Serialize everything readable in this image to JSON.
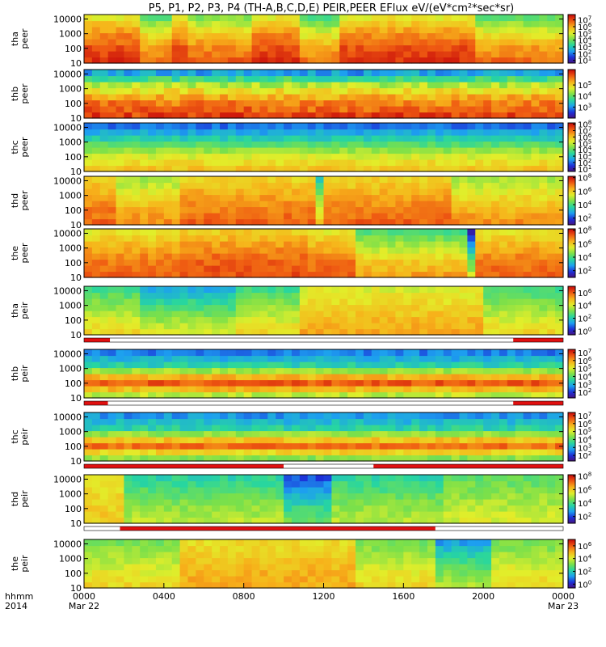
{
  "title": "P5, P1, P2, P3, P4 (TH-A,B,C,D,E) PEIR,PEER EFlux eV/(eV*cm²*sec*sr)",
  "colors": {
    "colormap": [
      "#4b0f7a",
      "#1c2fd8",
      "#1d9ff0",
      "#27d6a0",
      "#7be04a",
      "#e2ee2a",
      "#f7b21a",
      "#ef5a12",
      "#c80a0a"
    ],
    "flag_red": "#e01010",
    "flag_white": "#ffffff",
    "dropout": "#000000"
  },
  "chart_data": {
    "type": "heatmap",
    "title": "P5, P1, P2, P3, P4 (TH-A,B,C,D,E) PEIR,PEER EFlux eV/(eV*cm²*sec*sr)",
    "x_axis": {
      "label_line1": "hhmm",
      "label_line2": "2014",
      "range_hours": [
        0,
        24
      ],
      "ticks": [
        {
          "hour": 0,
          "label": "0000",
          "date": "Mar 22"
        },
        {
          "hour": 4,
          "label": "0400",
          "date": ""
        },
        {
          "hour": 8,
          "label": "0800",
          "date": ""
        },
        {
          "hour": 12,
          "label": "1200",
          "date": ""
        },
        {
          "hour": 16,
          "label": "1600",
          "date": ""
        },
        {
          "hour": 20,
          "label": "2000",
          "date": ""
        },
        {
          "hour": 24,
          "label": "0000",
          "date": "Mar 23"
        }
      ]
    },
    "y_scale": "log",
    "y_range": [
      10,
      20000
    ],
    "y_ticks": [
      {
        "value": 10,
        "label": "10"
      },
      {
        "value": 100,
        "label": "100"
      },
      {
        "value": 1000,
        "label": "1000"
      },
      {
        "value": 10000,
        "label": "10000"
      }
    ],
    "panels": [
      {
        "probe": "tha",
        "species": "peer",
        "colorbar_exponents": [
          1,
          2,
          3,
          4,
          5,
          6,
          7
        ],
        "cb_range": [
          0.6,
          7.8
        ],
        "base": [
          7.4,
          7.0,
          6.2,
          5.0
        ],
        "events": [
          [
            2.7,
            4.2,
            -1.4
          ],
          [
            5.2,
            8.2,
            -1.0
          ],
          [
            10.9,
            12.6,
            -1.6
          ],
          [
            19.8,
            24,
            -1.4
          ]
        ]
      },
      {
        "probe": "thb",
        "species": "peer",
        "colorbar_exponents": [
          3,
          4,
          5
        ],
        "cb_range": [
          2.0,
          6.4
        ],
        "base": [
          6.1,
          5.6,
          4.6,
          2.8
        ],
        "events": []
      },
      {
        "probe": "thc",
        "species": "peer",
        "colorbar_exponents": [
          1,
          2,
          3,
          4,
          5,
          6,
          7,
          8
        ],
        "cb_range": [
          0.6,
          8.2
        ],
        "base": [
          6.2,
          5.2,
          3.4,
          1.8
        ],
        "events": []
      },
      {
        "probe": "thd",
        "species": "peer",
        "colorbar_exponents": [
          2,
          4,
          6,
          8
        ],
        "cb_range": [
          1.0,
          8.2
        ],
        "base": [
          7.3,
          6.9,
          6.4,
          5.8
        ],
        "events": [
          [
            1.6,
            4.8,
            -1.0
          ],
          [
            11.6,
            12.1,
            -2.4
          ],
          [
            18.4,
            24,
            -1.0
          ]
        ]
      },
      {
        "probe": "the",
        "species": "peer",
        "colorbar_exponents": [
          2,
          4,
          6,
          8
        ],
        "cb_range": [
          1.0,
          8.2
        ],
        "base": [
          7.3,
          7.0,
          6.3,
          5.5
        ],
        "events": [
          [
            4.8,
            11.0,
            0.4
          ],
          [
            13.6,
            19.6,
            -1.6
          ],
          [
            19.2,
            19.5,
            -3.0
          ]
        ]
      },
      {
        "probe": "tha",
        "species": "peir",
        "colorbar_exponents": [
          0,
          2,
          4,
          6
        ],
        "cb_range": [
          -0.6,
          7.0
        ],
        "base": [
          4.6,
          4.0,
          3.2,
          2.4
        ],
        "events": [
          [
            11.0,
            19.8,
            1.6
          ],
          [
            3.0,
            7.4,
            -1.0
          ]
        ],
        "flag_bar": [
          [
            0,
            1.3,
            "red"
          ],
          [
            1.3,
            21.5,
            "white"
          ],
          [
            21.5,
            24,
            "red"
          ]
        ]
      },
      {
        "probe": "thb",
        "species": "peir",
        "colorbar_exponents": [
          2,
          3,
          4,
          5,
          6,
          7
        ],
        "cb_range": [
          1.3,
          7.4
        ],
        "base": [
          4.4,
          6.8,
          3.6,
          2.4
        ],
        "events": [],
        "flag_bar": [
          [
            0,
            1.2,
            "red"
          ],
          [
            1.2,
            21.5,
            "white"
          ],
          [
            21.5,
            24,
            "red"
          ]
        ]
      },
      {
        "probe": "thc",
        "species": "peir",
        "colorbar_exponents": [
          2,
          3,
          4,
          5,
          6,
          7
        ],
        "cb_range": [
          1.3,
          7.4
        ],
        "base": [
          4.0,
          6.6,
          3.6,
          2.6
        ],
        "events": [],
        "flag_bar": [
          [
            0,
            10.0,
            "red"
          ],
          [
            10.0,
            14.5,
            "white"
          ],
          [
            14.5,
            24,
            "red"
          ]
        ]
      },
      {
        "probe": "thd",
        "species": "peir",
        "colorbar_exponents": [
          2,
          4,
          6,
          8
        ],
        "cb_range": [
          1.0,
          8.2
        ],
        "base": [
          5.2,
          4.8,
          4.2,
          3.6
        ],
        "events": [
          [
            0,
            1.8,
            2.0
          ],
          [
            10.1,
            12.3,
            -1.6
          ],
          [
            18.2,
            24,
            0.6
          ]
        ],
        "flag_bar": [
          [
            0,
            1.8,
            "white"
          ],
          [
            1.8,
            17.6,
            "red"
          ],
          [
            17.6,
            24,
            "white"
          ]
        ]
      },
      {
        "probe": "the",
        "species": "peir",
        "colorbar_exponents": [
          0,
          2,
          4,
          6
        ],
        "cb_range": [
          -0.6,
          7.0
        ],
        "base": [
          4.6,
          4.2,
          3.6,
          3.0
        ],
        "events": [
          [
            4.8,
            13.5,
            1.4
          ],
          [
            17.7,
            20.5,
            -1.8
          ]
        ]
      }
    ]
  }
}
